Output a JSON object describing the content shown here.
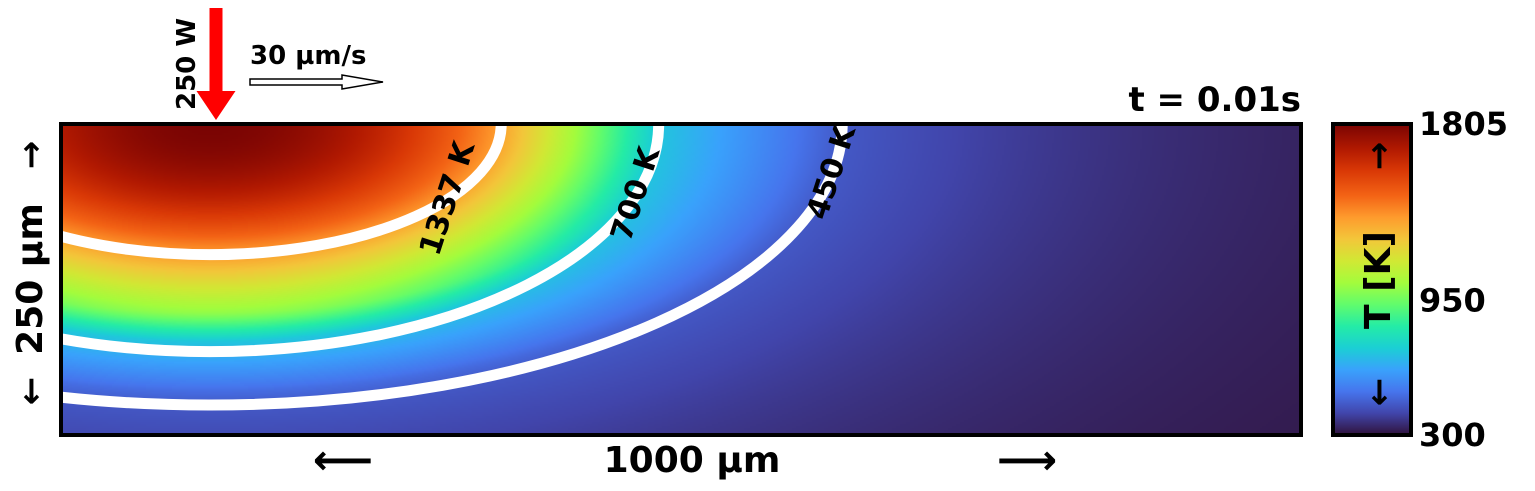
{
  "chart_data": {
    "type": "heatmap",
    "title": "t = 0.01s",
    "xlabel": "1000 µm",
    "ylabel": "250 µm",
    "x_arrow_left": "⟵",
    "x_arrow_right": "⟶",
    "y_arrow_up": "→",
    "y_arrow_down": "←",
    "domain_width_um": 1000,
    "domain_depth_um": 250,
    "laser": {
      "power_label": "250 W",
      "x_um": 125,
      "color": "#ff0000"
    },
    "scan": {
      "speed_label": "30 µm/s",
      "direction": "+x"
    },
    "heat_source_center_um": [
      120,
      0
    ],
    "colorbar": {
      "label": "T [K]",
      "arrow_up": "→",
      "arrow_down": "←",
      "vmin": 300,
      "vmax": 1805,
      "tick_values": [
        1805,
        950,
        300
      ],
      "tick_labels": [
        "1805",
        "950",
        "300"
      ],
      "colormap": "turbo-like"
    },
    "contours": [
      {
        "value": 1337,
        "label": "1337 K",
        "semi_axis_x_um": 235,
        "semi_axis_y_um": 105
      },
      {
        "value": 700,
        "label": "700 K",
        "semi_axis_x_um": 362,
        "semi_axis_y_um": 183
      },
      {
        "value": 450,
        "label": "450 K",
        "semi_axis_x_um": 510,
        "semi_axis_y_um": 226
      }
    ],
    "contour_color": "#ffffff"
  }
}
